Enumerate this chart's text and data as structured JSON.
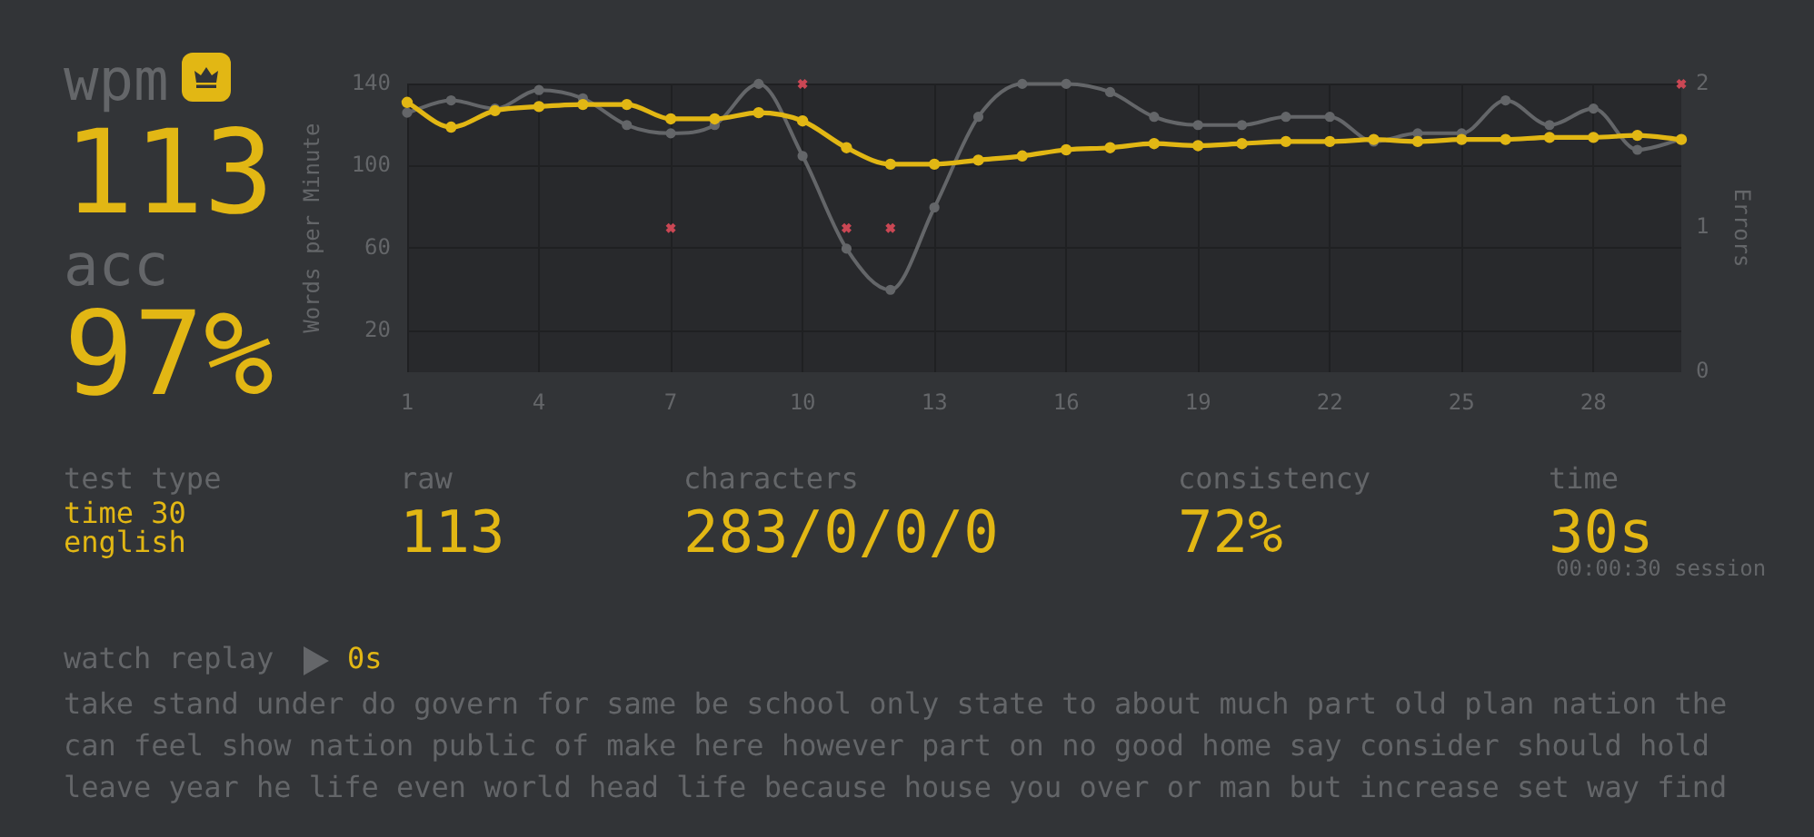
{
  "chart_data": [
    {
      "type": "other",
      "annotations": [
        "wpm",
        "113",
        "acc",
        "97%"
      ]
    },
    {
      "type": "line",
      "ylabel": "Words per Minute",
      "y2label": "Errors",
      "x": [
        1,
        2,
        3,
        4,
        5,
        6,
        7,
        8,
        9,
        10,
        11,
        12,
        13,
        14,
        15,
        16,
        17,
        18,
        19,
        20,
        21,
        22,
        23,
        24,
        25,
        26,
        27,
        28,
        29,
        30
      ],
      "xlim": [
        1,
        30
      ],
      "xticks": [
        1,
        4,
        7,
        10,
        13,
        16,
        19,
        22,
        25,
        28
      ],
      "ylim": [
        0,
        140
      ],
      "yticks": [
        20,
        60,
        100,
        140
      ],
      "y2lim": [
        0,
        2
      ],
      "y2ticks": [
        0,
        1,
        2
      ],
      "grid": true,
      "marker": "circle",
      "line_style": "solid",
      "series": [
        {
          "color": "#646669",
          "values": [
            126,
            132,
            128,
            137,
            133,
            120,
            116,
            120,
            140,
            105,
            60,
            40,
            80,
            124,
            140,
            140,
            136,
            124,
            120,
            120,
            124,
            124,
            112,
            116,
            116,
            132,
            120,
            128,
            108,
            113
          ]
        },
        {
          "color": "#e2b714",
          "values": [
            131,
            119,
            127,
            129,
            130,
            130,
            123,
            123,
            126,
            122,
            109,
            101,
            101,
            103,
            105,
            108,
            109,
            111,
            110,
            111,
            112,
            112,
            113,
            112,
            113,
            113,
            114,
            114,
            115,
            113
          ]
        },
        {
          "type": "scatter",
          "axis": "y2",
          "marker": "cross",
          "color": "#ca4754",
          "values": [
            null,
            null,
            null,
            null,
            null,
            null,
            1,
            null,
            null,
            2,
            1,
            1,
            null,
            null,
            null,
            null,
            null,
            null,
            null,
            null,
            null,
            null,
            null,
            null,
            null,
            null,
            null,
            null,
            null,
            2
          ]
        }
      ]
    },
    {
      "type": "other",
      "annotations": [
        "test type",
        "time 30",
        "english",
        "raw",
        "113",
        "characters",
        "283/0/0/0",
        "consistency",
        "72%",
        "time",
        "30s",
        "00:00:30 session",
        "watch replay",
        "0s",
        "take stand under do govern for same be school only state to about much part old plan nation the",
        "can feel show nation public of make here however part on no good home say consider should hold",
        "leave year he life even world head life because house you over or man but increase set way find"
      ]
    }
  ]
}
